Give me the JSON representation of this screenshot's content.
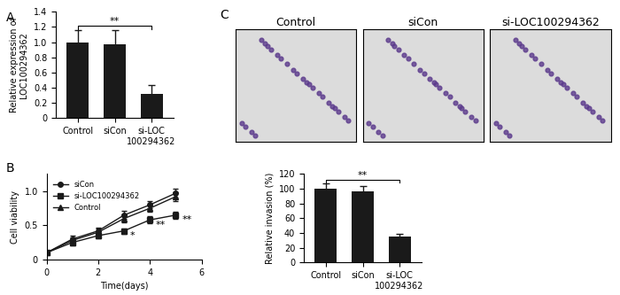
{
  "chart_data": [
    {
      "type": "bar",
      "panel_label": "A",
      "y_label": "Relative expression of\nLOC100294362",
      "categories": [
        "Control",
        "siCon",
        "si-LOC\n100294362"
      ],
      "values": [
        1.0,
        0.97,
        0.32
      ],
      "errors": [
        0.16,
        0.19,
        0.12
      ],
      "color": "#1a1a1a",
      "ylim": [
        0,
        1.4
      ],
      "yticks": [
        0,
        0.2,
        0.4,
        0.6,
        0.8,
        {
          "value": 1,
          "label": "1.0"
        },
        1.2,
        1.4
      ],
      "significance": {
        "from": "Control",
        "to": "si-LOC\n100294362",
        "text": "**"
      }
    },
    {
      "type": "line",
      "panel_label": "B",
      "x_label": "Time(days)",
      "y_label": "Cell viability",
      "x": [
        0,
        1,
        2,
        3,
        4,
        5
      ],
      "series": [
        {
          "name": "siCon",
          "color": "#1a1a1a",
          "marker": "circle",
          "values": [
            0.1,
            0.3,
            0.42,
            0.65,
            0.8,
            0.97
          ],
          "errors": [
            0.02,
            0.05,
            0.05,
            0.06,
            0.05,
            0.06
          ]
        },
        {
          "name": "si-LOC100294362",
          "color": "#1a1a1a",
          "marker": "square",
          "values": [
            0.1,
            0.25,
            0.35,
            0.42,
            0.58,
            0.65
          ],
          "errors": [
            0.02,
            0.04,
            0.04,
            0.04,
            0.05,
            0.05
          ]
        },
        {
          "name": "Control",
          "color": "#1a1a1a",
          "marker": "triangle",
          "values": [
            0.1,
            0.28,
            0.4,
            0.6,
            0.75,
            0.92
          ],
          "errors": [
            0.02,
            0.05,
            0.05,
            0.06,
            0.05,
            0.06
          ]
        }
      ],
      "xlim": [
        0,
        6
      ],
      "xticks": [
        0,
        2,
        4,
        6
      ],
      "ylim": [
        0,
        1.25
      ],
      "yticks": [
        0,
        0.5,
        {
          "value": 1,
          "label": "1.0"
        }
      ],
      "legend": "upper left",
      "annotations": [
        {
          "x": 3,
          "y": 0.42,
          "text": "*"
        },
        {
          "x": 4,
          "y": 0.58,
          "text": "**"
        },
        {
          "x": 5,
          "y": 0.65,
          "text": "**"
        }
      ]
    },
    {
      "type": "bar",
      "y_label": "Relative invasion (%)",
      "categories": [
        "Control",
        "siCon",
        "si-LOC\n100294362"
      ],
      "values": [
        100,
        96,
        35
      ],
      "errors": [
        7,
        8,
        4
      ],
      "color": "#1a1a1a",
      "ylim": [
        0,
        120
      ],
      "yticks": [
        0,
        20,
        40,
        60,
        80,
        100,
        120
      ],
      "significance": {
        "from": "Control",
        "to": "si-LOC\n100294362",
        "text": "**"
      }
    }
  ],
  "images": {
    "panel_label": "C",
    "titles": [
      "Control",
      "siCon",
      "si-LOC100294362"
    ]
  }
}
